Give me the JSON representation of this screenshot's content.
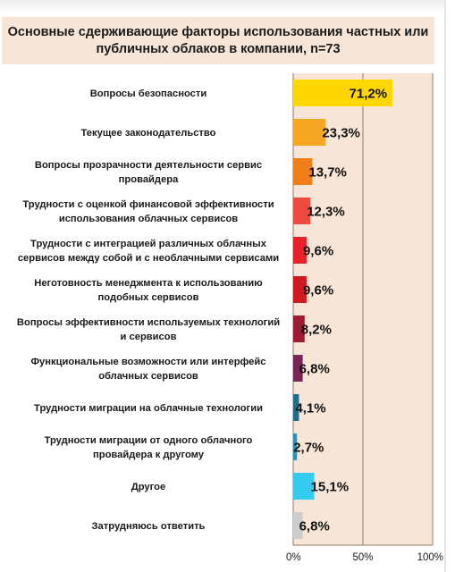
{
  "chart_data": {
    "type": "bar",
    "orientation": "horizontal",
    "title_lines": [
      "Основные сдерживающие факторы использования частных или",
      "публичных облаков в компании, n=73"
    ],
    "categories": [
      [
        "Вопросы безопасности"
      ],
      [
        "Текущее законодательство"
      ],
      [
        "Вопросы прозрачности деятельности сервис",
        "провайдера"
      ],
      [
        "Трудности с оценкой финансовой эффективности",
        "использования облачных сервисов"
      ],
      [
        "Трудности с интеграцией различных облачных",
        "сервисов между собой и с необлачными сервисами"
      ],
      [
        "Неготовность менеджмента к использованию",
        "подобных сервисов"
      ],
      [
        "Вопросы эффективности используемых технологий",
        "и сервисов"
      ],
      [
        "Функциональные возможности или интерфейс",
        "облачных сервисов"
      ],
      [
        "Трудности миграции на облачные технологии"
      ],
      [
        "Трудности миграции от одного облачного",
        "провайдера к другому"
      ],
      [
        "Другое"
      ],
      [
        "Затрудняюсь ответить"
      ]
    ],
    "values": [
      71.2,
      23.3,
      13.7,
      12.3,
      9.6,
      9.6,
      8.2,
      6.8,
      4.1,
      2.7,
      15.1,
      6.8
    ],
    "value_labels": [
      "71,2%",
      "23,3%",
      "13,7%",
      "12,3%",
      "9,6%",
      "9,6%",
      "8,2%",
      "6,8%",
      "4,1%",
      "2,7%",
      "15,1%",
      "6,8%"
    ],
    "bar_colors": [
      "#ffd700",
      "#f5a623",
      "#f07f1a",
      "#ee4b3e",
      "#e8202a",
      "#d01a20",
      "#9b1b30",
      "#7a2458",
      "#1f6e8c",
      "#2b8fb8",
      "#33ccee",
      "#cccccc"
    ],
    "xlim": [
      0,
      100
    ],
    "xticks": [
      0,
      50,
      100
    ],
    "xtick_labels": [
      "0%",
      "50%",
      "100%"
    ],
    "plot_background": "#f7e6d8",
    "grid": true
  }
}
